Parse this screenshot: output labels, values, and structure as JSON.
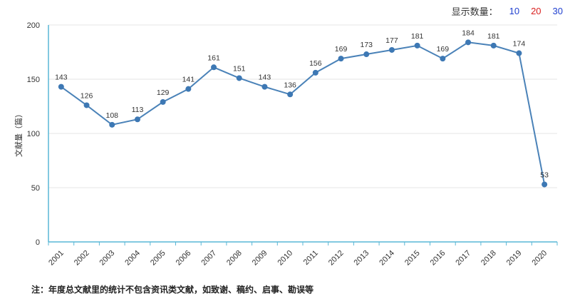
{
  "controls": {
    "display_count_label": "显示数量：",
    "options": [
      {
        "label": "10",
        "color": "#1f3fcf"
      },
      {
        "label": "20",
        "color": "#d9201f"
      },
      {
        "label": "30",
        "color": "#1f3fcf"
      }
    ]
  },
  "footnote": "注：年度总文献里的统计不包含资讯类文献，如致谢、稿约、启事、勘误等",
  "colors": {
    "line": "#4a82b8",
    "point": "#3d78b4",
    "axis": "#59b7d6",
    "grid": "#e4e4e4"
  },
  "chart_data": {
    "type": "line",
    "categories": [
      "2001",
      "2002",
      "2003",
      "2004",
      "2005",
      "2006",
      "2007",
      "2008",
      "2009",
      "2010",
      "2011",
      "2012",
      "2013",
      "2014",
      "2015",
      "2016",
      "2017",
      "2018",
      "2019",
      "2020"
    ],
    "values": [
      143,
      126,
      108,
      113,
      129,
      141,
      161,
      151,
      143,
      136,
      156,
      169,
      173,
      177,
      181,
      169,
      184,
      181,
      174,
      53
    ],
    "title": "",
    "xlabel": "",
    "ylabel": "文献量（篇）",
    "ylim": [
      0,
      200
    ],
    "yticks": [
      0,
      50,
      100,
      150,
      200
    ],
    "grid": true,
    "data_labels": true,
    "legend": "none"
  }
}
